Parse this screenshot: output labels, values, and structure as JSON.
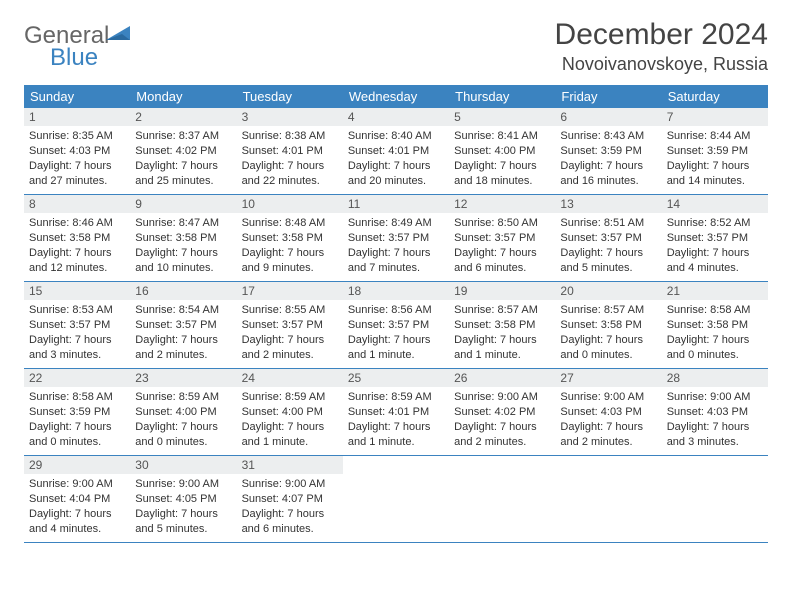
{
  "logo": {
    "gray": "General",
    "blue": "Blue"
  },
  "title": "December 2024",
  "location": "Novoivanovskoye, Russia",
  "colors": {
    "header_bg": "#3b83c0",
    "header_text": "#ffffff",
    "daynum_bg": "#eceeef",
    "text": "#333333",
    "border": "#3b83c0"
  },
  "dayHeaders": [
    "Sunday",
    "Monday",
    "Tuesday",
    "Wednesday",
    "Thursday",
    "Friday",
    "Saturday"
  ],
  "weeks": [
    [
      {
        "n": "1",
        "sr": "Sunrise: 8:35 AM",
        "ss": "Sunset: 4:03 PM",
        "d1": "Daylight: 7 hours",
        "d2": "and 27 minutes."
      },
      {
        "n": "2",
        "sr": "Sunrise: 8:37 AM",
        "ss": "Sunset: 4:02 PM",
        "d1": "Daylight: 7 hours",
        "d2": "and 25 minutes."
      },
      {
        "n": "3",
        "sr": "Sunrise: 8:38 AM",
        "ss": "Sunset: 4:01 PM",
        "d1": "Daylight: 7 hours",
        "d2": "and 22 minutes."
      },
      {
        "n": "4",
        "sr": "Sunrise: 8:40 AM",
        "ss": "Sunset: 4:01 PM",
        "d1": "Daylight: 7 hours",
        "d2": "and 20 minutes."
      },
      {
        "n": "5",
        "sr": "Sunrise: 8:41 AM",
        "ss": "Sunset: 4:00 PM",
        "d1": "Daylight: 7 hours",
        "d2": "and 18 minutes."
      },
      {
        "n": "6",
        "sr": "Sunrise: 8:43 AM",
        "ss": "Sunset: 3:59 PM",
        "d1": "Daylight: 7 hours",
        "d2": "and 16 minutes."
      },
      {
        "n": "7",
        "sr": "Sunrise: 8:44 AM",
        "ss": "Sunset: 3:59 PM",
        "d1": "Daylight: 7 hours",
        "d2": "and 14 minutes."
      }
    ],
    [
      {
        "n": "8",
        "sr": "Sunrise: 8:46 AM",
        "ss": "Sunset: 3:58 PM",
        "d1": "Daylight: 7 hours",
        "d2": "and 12 minutes."
      },
      {
        "n": "9",
        "sr": "Sunrise: 8:47 AM",
        "ss": "Sunset: 3:58 PM",
        "d1": "Daylight: 7 hours",
        "d2": "and 10 minutes."
      },
      {
        "n": "10",
        "sr": "Sunrise: 8:48 AM",
        "ss": "Sunset: 3:58 PM",
        "d1": "Daylight: 7 hours",
        "d2": "and 9 minutes."
      },
      {
        "n": "11",
        "sr": "Sunrise: 8:49 AM",
        "ss": "Sunset: 3:57 PM",
        "d1": "Daylight: 7 hours",
        "d2": "and 7 minutes."
      },
      {
        "n": "12",
        "sr": "Sunrise: 8:50 AM",
        "ss": "Sunset: 3:57 PM",
        "d1": "Daylight: 7 hours",
        "d2": "and 6 minutes."
      },
      {
        "n": "13",
        "sr": "Sunrise: 8:51 AM",
        "ss": "Sunset: 3:57 PM",
        "d1": "Daylight: 7 hours",
        "d2": "and 5 minutes."
      },
      {
        "n": "14",
        "sr": "Sunrise: 8:52 AM",
        "ss": "Sunset: 3:57 PM",
        "d1": "Daylight: 7 hours",
        "d2": "and 4 minutes."
      }
    ],
    [
      {
        "n": "15",
        "sr": "Sunrise: 8:53 AM",
        "ss": "Sunset: 3:57 PM",
        "d1": "Daylight: 7 hours",
        "d2": "and 3 minutes."
      },
      {
        "n": "16",
        "sr": "Sunrise: 8:54 AM",
        "ss": "Sunset: 3:57 PM",
        "d1": "Daylight: 7 hours",
        "d2": "and 2 minutes."
      },
      {
        "n": "17",
        "sr": "Sunrise: 8:55 AM",
        "ss": "Sunset: 3:57 PM",
        "d1": "Daylight: 7 hours",
        "d2": "and 2 minutes."
      },
      {
        "n": "18",
        "sr": "Sunrise: 8:56 AM",
        "ss": "Sunset: 3:57 PM",
        "d1": "Daylight: 7 hours",
        "d2": "and 1 minute."
      },
      {
        "n": "19",
        "sr": "Sunrise: 8:57 AM",
        "ss": "Sunset: 3:58 PM",
        "d1": "Daylight: 7 hours",
        "d2": "and 1 minute."
      },
      {
        "n": "20",
        "sr": "Sunrise: 8:57 AM",
        "ss": "Sunset: 3:58 PM",
        "d1": "Daylight: 7 hours",
        "d2": "and 0 minutes."
      },
      {
        "n": "21",
        "sr": "Sunrise: 8:58 AM",
        "ss": "Sunset: 3:58 PM",
        "d1": "Daylight: 7 hours",
        "d2": "and 0 minutes."
      }
    ],
    [
      {
        "n": "22",
        "sr": "Sunrise: 8:58 AM",
        "ss": "Sunset: 3:59 PM",
        "d1": "Daylight: 7 hours",
        "d2": "and 0 minutes."
      },
      {
        "n": "23",
        "sr": "Sunrise: 8:59 AM",
        "ss": "Sunset: 4:00 PM",
        "d1": "Daylight: 7 hours",
        "d2": "and 0 minutes."
      },
      {
        "n": "24",
        "sr": "Sunrise: 8:59 AM",
        "ss": "Sunset: 4:00 PM",
        "d1": "Daylight: 7 hours",
        "d2": "and 1 minute."
      },
      {
        "n": "25",
        "sr": "Sunrise: 8:59 AM",
        "ss": "Sunset: 4:01 PM",
        "d1": "Daylight: 7 hours",
        "d2": "and 1 minute."
      },
      {
        "n": "26",
        "sr": "Sunrise: 9:00 AM",
        "ss": "Sunset: 4:02 PM",
        "d1": "Daylight: 7 hours",
        "d2": "and 2 minutes."
      },
      {
        "n": "27",
        "sr": "Sunrise: 9:00 AM",
        "ss": "Sunset: 4:03 PM",
        "d1": "Daylight: 7 hours",
        "d2": "and 2 minutes."
      },
      {
        "n": "28",
        "sr": "Sunrise: 9:00 AM",
        "ss": "Sunset: 4:03 PM",
        "d1": "Daylight: 7 hours",
        "d2": "and 3 minutes."
      }
    ],
    [
      {
        "n": "29",
        "sr": "Sunrise: 9:00 AM",
        "ss": "Sunset: 4:04 PM",
        "d1": "Daylight: 7 hours",
        "d2": "and 4 minutes."
      },
      {
        "n": "30",
        "sr": "Sunrise: 9:00 AM",
        "ss": "Sunset: 4:05 PM",
        "d1": "Daylight: 7 hours",
        "d2": "and 5 minutes."
      },
      {
        "n": "31",
        "sr": "Sunrise: 9:00 AM",
        "ss": "Sunset: 4:07 PM",
        "d1": "Daylight: 7 hours",
        "d2": "and 6 minutes."
      },
      null,
      null,
      null,
      null
    ]
  ]
}
